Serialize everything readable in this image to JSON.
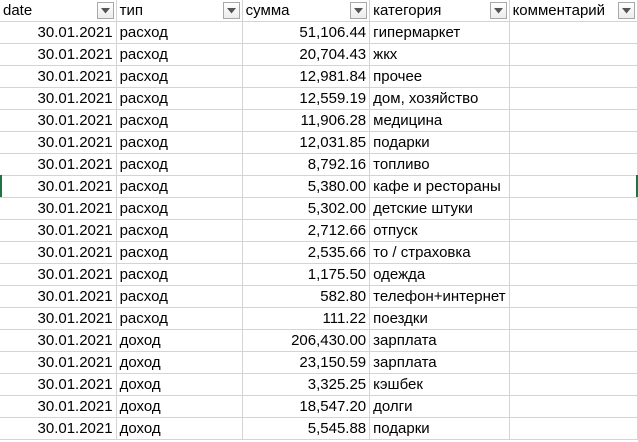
{
  "headers": [
    {
      "label": "date",
      "filter_icon": "filter-dropdown-icon"
    },
    {
      "label": "тип",
      "filter_icon": "filter-dropdown-icon"
    },
    {
      "label": "сумма",
      "filter_icon": "filter-dropdown-icon"
    },
    {
      "label": "категория",
      "filter_icon": "filter-dropdown-icon"
    },
    {
      "label": "комментарий",
      "filter_icon": "filter-dropdown-icon"
    }
  ],
  "rows": [
    {
      "date": "30.01.2021",
      "type": "расход",
      "amount": "51,106.44",
      "category": "гипермаркет",
      "comment": ""
    },
    {
      "date": "30.01.2021",
      "type": "расход",
      "amount": "20,704.43",
      "category": "жкх",
      "comment": ""
    },
    {
      "date": "30.01.2021",
      "type": "расход",
      "amount": "12,981.84",
      "category": "прочее",
      "comment": ""
    },
    {
      "date": "30.01.2021",
      "type": "расход",
      "amount": "12,559.19",
      "category": "дом, хозяйство",
      "comment": ""
    },
    {
      "date": "30.01.2021",
      "type": "расход",
      "amount": "11,906.28",
      "category": "медицина",
      "comment": ""
    },
    {
      "date": "30.01.2021",
      "type": "расход",
      "amount": "12,031.85",
      "category": "подарки",
      "comment": ""
    },
    {
      "date": "30.01.2021",
      "type": "расход",
      "amount": "8,792.16",
      "category": "топливо",
      "comment": ""
    },
    {
      "date": "30.01.2021",
      "type": "расход",
      "amount": "5,380.00",
      "category": "кафе и рестораны",
      "comment": ""
    },
    {
      "date": "30.01.2021",
      "type": "расход",
      "amount": "5,302.00",
      "category": "детские штуки",
      "comment": ""
    },
    {
      "date": "30.01.2021",
      "type": "расход",
      "amount": "2,712.66",
      "category": "отпуск",
      "comment": ""
    },
    {
      "date": "30.01.2021",
      "type": "расход",
      "amount": "2,535.66",
      "category": "то / страховка",
      "comment": ""
    },
    {
      "date": "30.01.2021",
      "type": "расход",
      "amount": "1,175.50",
      "category": "одежда",
      "comment": ""
    },
    {
      "date": "30.01.2021",
      "type": "расход",
      "amount": "582.80",
      "category": "телефон+интернет",
      "comment": ""
    },
    {
      "date": "30.01.2021",
      "type": "расход",
      "amount": "111.22",
      "category": "поездки",
      "comment": ""
    },
    {
      "date": "30.01.2021",
      "type": "доход",
      "amount": "206,430.00",
      "category": "зарплата",
      "comment": ""
    },
    {
      "date": "30.01.2021",
      "type": "доход",
      "amount": "23,150.59",
      "category": "зарплата",
      "comment": ""
    },
    {
      "date": "30.01.2021",
      "type": "доход",
      "amount": "3,325.25",
      "category": "кэшбек",
      "comment": ""
    },
    {
      "date": "30.01.2021",
      "type": "доход",
      "amount": "18,547.20",
      "category": "долги",
      "comment": ""
    },
    {
      "date": "30.01.2021",
      "type": "доход",
      "amount": "5,545.88",
      "category": "подарки",
      "comment": ""
    }
  ],
  "colors": {
    "grid": "#d4d4d4",
    "selection": "#217346"
  }
}
